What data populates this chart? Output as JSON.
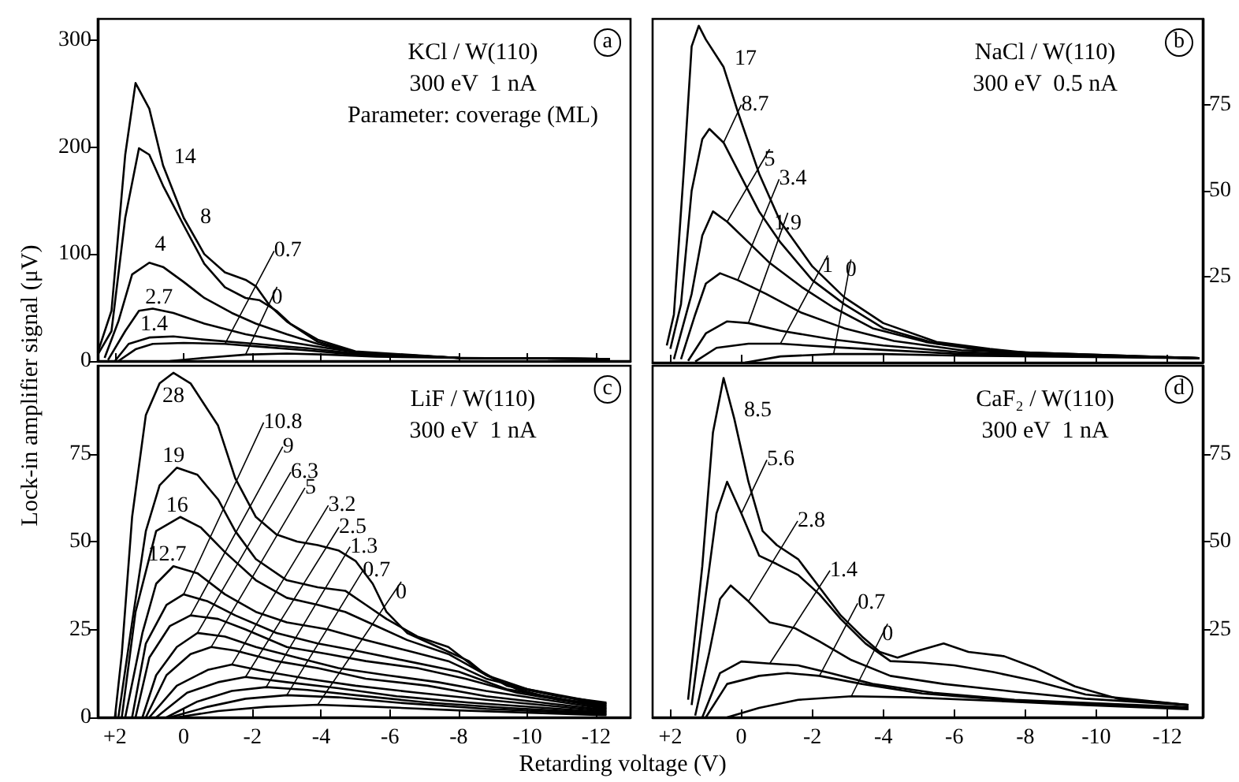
{
  "chart_data": [
    {
      "type": "line",
      "ylabel": "Lock-in amplifier signal (μV)",
      "annotations": [
        "a",
        "KCl / W(110)",
        "300 eV  1 nA",
        "Parameter: coverage (ML)"
      ],
      "xlim": [
        2.5,
        -13
      ],
      "ylim": [
        0,
        320
      ],
      "xticks": [
        2,
        0,
        -2,
        -4,
        -6,
        -8,
        -10,
        -12
      ],
      "yticks": [
        0,
        100,
        200,
        300
      ],
      "tick_labels": "y",
      "legend": false,
      "grid": false,
      "marker": "none",
      "line_style": "solid",
      "series": [
        {
          "name": "14",
          "color": "#000000",
          "x": [
            2.5,
            2.1,
            1.7,
            1.4,
            1.0,
            0.6,
            0.0,
            -0.6,
            -1.2,
            -1.8,
            -2.1,
            -2.5,
            -3.0,
            -3.9,
            -5.0,
            -8.0,
            -12.4
          ],
          "values": [
            8,
            47,
            193,
            260,
            236,
            183,
            134,
            100,
            83,
            76,
            70,
            52,
            37,
            18,
            8,
            3,
            2
          ]
        },
        {
          "name": "8",
          "color": "#000000",
          "x": [
            2.5,
            2.1,
            1.7,
            1.3,
            1.0,
            0.6,
            0.0,
            -0.6,
            -1.2,
            -1.8,
            -2.2,
            -2.7,
            -3.1,
            -3.9,
            -5.0,
            -8.0,
            -12.4
          ],
          "values": [
            6,
            28,
            134,
            199,
            193,
            164,
            127,
            91,
            69,
            59,
            57,
            47,
            35,
            20,
            9,
            3,
            2
          ]
        },
        {
          "name": "4",
          "color": "#000000",
          "x": [
            2.3,
            1.9,
            1.5,
            1.0,
            0.6,
            0.0,
            -0.6,
            -1.4,
            -2.1,
            -3.0,
            -3.9,
            -5.0,
            -8.0,
            -12.4
          ],
          "values": [
            3,
            37,
            81,
            92,
            88,
            74,
            59,
            45,
            35,
            25,
            16,
            8,
            3,
            2
          ]
        },
        {
          "name": "2.7",
          "color": "#000000",
          "x": [
            2.2,
            1.7,
            1.3,
            0.9,
            0.3,
            -0.6,
            -1.8,
            -3.0,
            -4.2,
            -5.3,
            -8.0,
            -12.4
          ],
          "values": [
            1,
            28,
            47,
            49,
            45,
            35,
            25,
            18,
            12,
            7,
            3,
            2
          ]
        },
        {
          "name": "1.4",
          "color": "#000000",
          "x": [
            2.0,
            1.6,
            1.0,
            0.3,
            -0.6,
            -2.1,
            -3.6,
            -5.0,
            -8.0,
            -12.4
          ],
          "values": [
            0,
            16,
            22,
            23,
            20,
            16,
            12,
            7,
            3,
            2
          ]
        },
        {
          "name": "0.7",
          "color": "#000000",
          "x": [
            1.9,
            1.4,
            0.9,
            0.0,
            -1.2,
            -2.4,
            -3.6,
            -5.0,
            -8.0,
            -12.3
          ],
          "values": [
            0,
            11,
            16,
            17,
            16,
            13,
            10,
            6,
            3,
            2
          ]
        },
        {
          "name": "0",
          "color": "#000000",
          "x": [
            0.4,
            -0.6,
            -1.8,
            -3.0,
            -4.2,
            -5.6,
            -8.0,
            -12.4
          ],
          "values": [
            0,
            3,
            6,
            7,
            6,
            4,
            3,
            2
          ]
        }
      ]
    },
    {
      "type": "line",
      "annotations": [
        "b",
        "NaCl / W(110)",
        "300 eV  0.5 nA"
      ],
      "xlim": [
        2.5,
        -13
      ],
      "ylim": [
        0,
        100
      ],
      "xticks": [
        2,
        0,
        -2,
        -4,
        -6,
        -8,
        -10,
        -12
      ],
      "yticks": [
        25,
        50,
        75
      ],
      "tick_labels": "y",
      "legend": false,
      "grid": false,
      "marker": "none",
      "line_style": "solid",
      "series": [
        {
          "name": "17",
          "color": "#000000",
          "x": [
            2.1,
            1.9,
            1.6,
            1.4,
            1.2,
            1.0,
            0.5,
            0.1,
            -0.5,
            -1.1,
            -2.0,
            -2.9,
            -4.0,
            -5.5,
            -7.0,
            -8.4,
            -12.9
          ],
          "values": [
            5,
            14,
            59,
            92,
            98,
            94,
            86,
            73,
            55,
            41,
            28,
            19,
            11.5,
            6,
            4,
            2.5,
            1.3
          ]
        },
        {
          "name": "8.7",
          "color": "#000000",
          "x": [
            2.0,
            1.7,
            1.4,
            1.1,
            0.9,
            0.5,
            0.1,
            -0.5,
            -1.1,
            -2.0,
            -2.9,
            -4.0,
            -5.5,
            -7.0,
            -8.4,
            -12.9
          ],
          "values": [
            4,
            17,
            50,
            65,
            68,
            64,
            56,
            44,
            35,
            24,
            17,
            10,
            5.5,
            3.6,
            2.5,
            1.3
          ]
        },
        {
          "name": "5",
          "color": "#000000",
          "x": [
            1.9,
            1.4,
            1.1,
            0.8,
            0.4,
            -0.2,
            -0.8,
            -1.7,
            -2.6,
            -3.7,
            -5.2,
            -7.0,
            -12.9
          ],
          "values": [
            1,
            20,
            37,
            44,
            41,
            35,
            29,
            22,
            16,
            10,
            6,
            3.3,
            1.3
          ]
        },
        {
          "name": "3.4",
          "color": "#000000",
          "x": [
            1.7,
            1.3,
            1.0,
            0.6,
            0.1,
            -0.7,
            -1.7,
            -2.9,
            -4.3,
            -6.2,
            -12.9
          ],
          "values": [
            1,
            14,
            23,
            26,
            24,
            20,
            14.5,
            10,
            6.3,
            3.6,
            1.3
          ]
        },
        {
          "name": "1.9",
          "color": "#000000",
          "x": [
            1.5,
            1.0,
            0.4,
            -0.2,
            -1.1,
            -2.6,
            -4.0,
            -6.2,
            -12.9
          ],
          "values": [
            0.5,
            8.5,
            12,
            11.5,
            9.3,
            6.7,
            5,
            3,
            1.3
          ]
        },
        {
          "name": "1",
          "color": "#000000",
          "x": [
            1.3,
            0.7,
            -0.2,
            -1.1,
            -2.6,
            -4.0,
            -6.2,
            -12.9
          ],
          "values": [
            0.3,
            4.3,
            5.5,
            5.5,
            4.5,
            3.7,
            2.5,
            1.3
          ]
        },
        {
          "name": "0",
          "color": "#000000",
          "x": [
            -0.1,
            -1.1,
            -2.6,
            -4.0,
            -6.2,
            -12.9
          ],
          "values": [
            0,
            1.8,
            2.5,
            2.5,
            2,
            1.3
          ]
        }
      ]
    },
    {
      "type": "line",
      "xlabel": "Retarding voltage (V)",
      "annotations": [
        "c",
        "LiF / W(110)",
        "300 eV  1 nA"
      ],
      "xlim": [
        2.5,
        -13
      ],
      "ylim": [
        0,
        100
      ],
      "xticks": [
        {
          "value": 2,
          "label": "+2"
        },
        0,
        -2,
        -4,
        -6,
        -8,
        -10,
        -12
      ],
      "yticks": [
        0,
        25,
        50,
        75
      ],
      "legend": false,
      "grid": false,
      "marker": "none",
      "line_style": "solid",
      "series": [
        {
          "name": "28",
          "color": "#000000",
          "x": [
            2.0,
            1.8,
            1.5,
            1.1,
            0.7,
            0.3,
            -0.2,
            -1.0,
            -1.5,
            -2.1,
            -2.7,
            -3.3,
            -3.9,
            -4.5,
            -5.0,
            -5.5,
            -5.9,
            -6.5,
            -7.4,
            -8.3,
            -8.8,
            -9.7,
            -10.9,
            -12.3
          ],
          "values": [
            0,
            18,
            57,
            86,
            95,
            98,
            95,
            83,
            68,
            57,
            52,
            50,
            49,
            47.5,
            44.5,
            38,
            30,
            24,
            20,
            16,
            12,
            8,
            5,
            3.8
          ]
        },
        {
          "name": "19",
          "color": "#000000",
          "x": [
            1.9,
            1.5,
            1.1,
            0.7,
            0.2,
            -0.4,
            -1.0,
            -1.5,
            -2.1,
            -3.0,
            -3.9,
            -4.7,
            -5.3,
            -5.9,
            -6.8,
            -7.7,
            -8.5,
            -9.4,
            -10.9,
            -12.3
          ],
          "values": [
            0,
            27,
            53,
            66,
            71,
            69,
            62,
            53,
            45,
            39,
            37,
            36,
            32,
            28,
            23,
            20,
            14,
            9,
            6,
            4.2
          ]
        },
        {
          "name": "16",
          "color": "#000000",
          "x": [
            1.8,
            1.4,
            0.8,
            0.1,
            -0.5,
            -1.2,
            -2.1,
            -3.0,
            -3.9,
            -4.7,
            -5.6,
            -6.5,
            -7.7,
            -8.8,
            -10.0,
            -12.3
          ],
          "values": [
            0,
            30,
            53,
            57,
            54,
            47,
            39,
            34,
            32,
            30,
            26,
            22,
            18,
            12,
            8,
            3.8
          ]
        },
        {
          "name": "12.7",
          "color": "#000000",
          "x": [
            1.7,
            1.2,
            0.8,
            0.3,
            -0.4,
            -1.2,
            -2.1,
            -3.0,
            -4.2,
            -5.3,
            -6.5,
            -7.7,
            -8.8,
            -10.0,
            -12.3
          ],
          "values": [
            0,
            24,
            38,
            43,
            41,
            35,
            30,
            27,
            25,
            22,
            19,
            16,
            11,
            8,
            3.3
          ]
        },
        {
          "name": "10.8",
          "color": "#000000",
          "x": [
            1.5,
            1.1,
            0.5,
            0.0,
            -0.7,
            -1.5,
            -2.7,
            -3.9,
            -5.0,
            -6.5,
            -8.0,
            -9.4,
            -12.3
          ],
          "values": [
            0,
            21,
            32,
            35,
            33,
            29,
            24,
            21,
            19,
            16,
            13,
            8,
            3
          ]
        },
        {
          "name": "9",
          "color": "#000000",
          "x": [
            1.4,
            1.0,
            0.4,
            -0.2,
            -1.0,
            -1.8,
            -3.0,
            -4.2,
            -5.3,
            -6.8,
            -8.2,
            -9.7,
            -12.3
          ],
          "values": [
            0,
            17,
            26,
            29,
            28,
            25,
            20,
            18,
            16,
            14,
            11,
            7,
            2.7
          ]
        },
        {
          "name": "6.3",
          "color": "#000000",
          "x": [
            1.2,
            0.8,
            0.2,
            -0.4,
            -1.2,
            -2.1,
            -3.3,
            -4.5,
            -5.9,
            -7.4,
            -8.8,
            -12.3
          ],
          "values": [
            0,
            12,
            20,
            24,
            23,
            20,
            17,
            14,
            12,
            10,
            7.5,
            2.4
          ]
        },
        {
          "name": "5",
          "color": "#000000",
          "x": [
            1.1,
            0.5,
            -0.2,
            -0.8,
            -1.5,
            -2.7,
            -3.9,
            -5.3,
            -7.1,
            -8.8,
            -12.3
          ],
          "values": [
            0,
            12,
            18,
            20,
            19,
            16,
            14,
            11,
            9,
            6,
            2.1
          ]
        },
        {
          "name": "3.2",
          "color": "#000000",
          "x": [
            1.0,
            0.2,
            -0.7,
            -1.4,
            -2.4,
            -3.6,
            -5.0,
            -6.8,
            -8.8,
            -12.3
          ],
          "values": [
            0,
            9,
            13.5,
            15,
            13,
            11,
            9,
            7,
            5,
            1.8
          ]
        },
        {
          "name": "2.5",
          "color": "#000000",
          "x": [
            0.8,
            -0.1,
            -1.0,
            -1.8,
            -3.0,
            -4.5,
            -6.2,
            -8.3,
            -12.3
          ],
          "values": [
            0,
            7,
            10,
            11.5,
            10,
            8.3,
            6,
            4.2,
            1.5
          ]
        },
        {
          "name": "1.3",
          "color": "#000000",
          "x": [
            0.5,
            -0.4,
            -1.4,
            -2.4,
            -3.6,
            -5.0,
            -7.1,
            -9.4,
            -12.3
          ],
          "values": [
            0,
            4.5,
            7.5,
            8.6,
            7.8,
            6.3,
            4.2,
            2.7,
            1.2
          ]
        },
        {
          "name": "0.7",
          "color": "#000000",
          "x": [
            0.4,
            -0.7,
            -1.8,
            -3.0,
            -4.5,
            -6.2,
            -8.8,
            -12.3
          ],
          "values": [
            0,
            3,
            5.3,
            6.3,
            5.7,
            4.2,
            2.4,
            0.9
          ]
        },
        {
          "name": "0",
          "color": "#000000",
          "x": [
            0.2,
            -1.0,
            -2.4,
            -3.9,
            -5.6,
            -8.0,
            -12.3
          ],
          "values": [
            0,
            1.8,
            3,
            3.6,
            3,
            2,
            0.6
          ]
        }
      ]
    },
    {
      "type": "line",
      "annotations": [
        "d",
        "CaF₂ / W(110)",
        "300 eV  1 nA"
      ],
      "xlim": [
        2.5,
        -13
      ],
      "ylim": [
        0,
        100
      ],
      "xticks": [
        {
          "value": 2,
          "label": "+2"
        },
        0,
        -2,
        -4,
        -6,
        -8,
        -10,
        -12
      ],
      "yticks": [
        25,
        50,
        75
      ],
      "legend": false,
      "grid": false,
      "marker": "none",
      "line_style": "solid",
      "series": [
        {
          "name": "8.5",
          "color": "#000000",
          "x": [
            1.5,
            1.1,
            0.8,
            0.5,
            0.2,
            -0.2,
            -0.6,
            -1.0,
            -1.6,
            -2.2,
            -2.8,
            -3.4,
            -3.9,
            -4.4,
            -5.0,
            -5.7,
            -6.4,
            -7.4,
            -8.3,
            -9.4,
            -10.6,
            -12.6
          ],
          "values": [
            5,
            43,
            81,
            96.5,
            85,
            67,
            53,
            49,
            45,
            37,
            29,
            23,
            18.6,
            17,
            19,
            21,
            18.6,
            17.4,
            14,
            8.8,
            5.3,
            3.5
          ]
        },
        {
          "name": "5.6",
          "color": "#000000",
          "x": [
            1.4,
            1.0,
            0.7,
            0.4,
            0.0,
            -0.5,
            -1.0,
            -1.6,
            -2.2,
            -2.8,
            -3.5,
            -4.2,
            -5.1,
            -6.0,
            -7.1,
            -8.3,
            -9.7,
            -12.6
          ],
          "values": [
            3.5,
            35,
            58,
            67,
            58,
            46,
            43.6,
            40.5,
            35,
            28,
            21,
            16,
            15.6,
            14.8,
            12.9,
            10.3,
            6.5,
            3.5
          ]
        },
        {
          "name": "2.8",
          "color": "#000000",
          "x": [
            1.3,
            0.9,
            0.6,
            0.3,
            -0.2,
            -0.8,
            -1.5,
            -2.2,
            -3.1,
            -4.2,
            -5.7,
            -7.7,
            -9.7,
            -12.6
          ],
          "values": [
            0.5,
            18.6,
            33.7,
            37.5,
            33,
            27,
            25.4,
            21.6,
            16.3,
            11.8,
            9.5,
            7.3,
            5.3,
            3.5
          ]
        },
        {
          "name": "1.4",
          "color": "#000000",
          "x": [
            1.1,
            0.6,
            0.0,
            -0.8,
            -1.6,
            -2.5,
            -3.7,
            -5.4,
            -7.7,
            -12.6
          ],
          "values": [
            0,
            12.6,
            15.9,
            15.3,
            14.8,
            12.6,
            9.5,
            7,
            5,
            2.9
          ]
        },
        {
          "name": "0.7",
          "color": "#000000",
          "x": [
            1.0,
            0.4,
            -0.5,
            -1.3,
            -2.2,
            -3.4,
            -5.1,
            -7.7,
            -12.6
          ],
          "values": [
            0,
            9.5,
            11.8,
            12.6,
            11.8,
            9.5,
            6.8,
            4.7,
            2.6
          ]
        },
        {
          "name": "0",
          "color": "#000000",
          "x": [
            0.4,
            -0.5,
            -1.6,
            -3.1,
            -4.8,
            -7.1,
            -9.7,
            -12.6
          ],
          "values": [
            0,
            2.7,
            5,
            6,
            5.7,
            4.7,
            3.5,
            2.3
          ]
        }
      ]
    }
  ]
}
